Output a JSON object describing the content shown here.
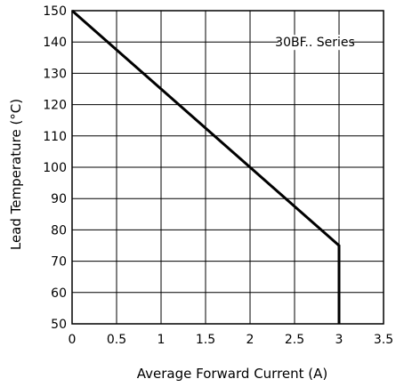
{
  "chart_data": {
    "type": "line",
    "title": "",
    "xlabel": "Average Forward Current (A)",
    "ylabel": "Lead Temperature (°C)",
    "xlim": [
      0,
      3.5
    ],
    "ylim": [
      50,
      150
    ],
    "grid": true,
    "x_ticks": [
      "0",
      "0.5",
      "1",
      "1.5",
      "2",
      "2.5",
      "3",
      "3.5"
    ],
    "y_ticks": [
      "50",
      "60",
      "70",
      "80",
      "90",
      "100",
      "110",
      "120",
      "130",
      "140",
      "150"
    ],
    "series": [
      {
        "name": "30BF.. Series",
        "x": [
          0,
          3,
          3
        ],
        "y": [
          150,
          75,
          50
        ]
      }
    ],
    "annotation": "30BF.. Series"
  }
}
